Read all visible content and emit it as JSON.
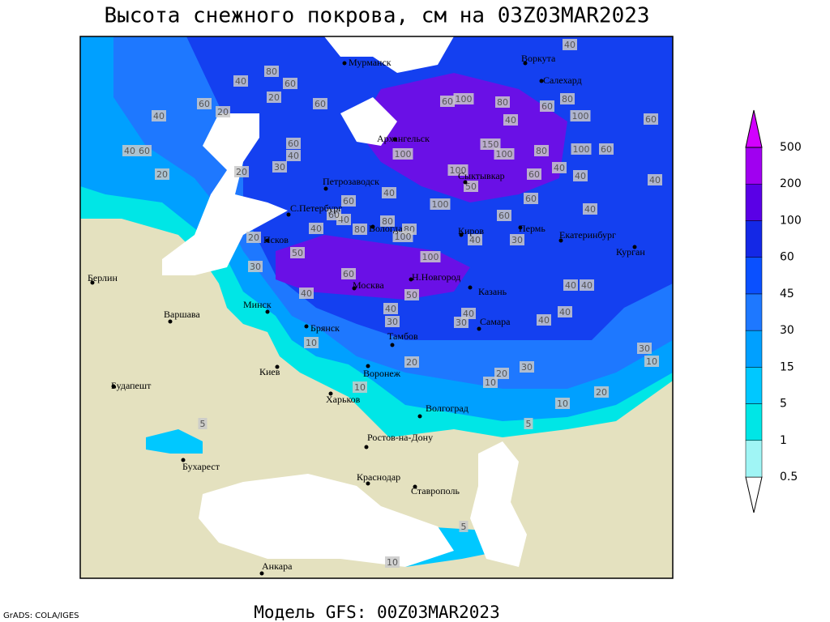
{
  "title": "Высота снежного покрова, см на 03Z03MAR2023",
  "footer": "Модель GFS: 00Z03MAR2023",
  "credit": "GrADS: COLA/IGES",
  "legend": {
    "levels": [
      0.5,
      1,
      5,
      15,
      30,
      45,
      60,
      100,
      200,
      500
    ],
    "colors": [
      "#ffffff",
      "#a0f5f5",
      "#00e6e6",
      "#00c8ff",
      "#00a0ff",
      "#1e78ff",
      "#0a50ff",
      "#1428e6",
      "#5a00e6",
      "#a000f0",
      "#d200ff"
    ]
  },
  "cities": [
    "Мурманск",
    "Воркута",
    "Салехард",
    "Архангельск",
    "Петрозаводск",
    "Сыктывкар",
    "С.Петербург",
    "Вологда",
    "Киров",
    "Пермь",
    "Екатеринбург",
    "Курган",
    "Псков",
    "Н.Новгород",
    "Москва",
    "Казань",
    "Берлин",
    "Минск",
    "Варшава",
    "Брянск",
    "Тамбов",
    "Самара",
    "Киев",
    "Воронеж",
    "Будапешт",
    "Харьков",
    "Волгоград",
    "Ростов-на-Дону",
    "Бухарест",
    "Краснодар",
    "Ставрополь",
    "Анкара"
  ],
  "map_labels": [
    40,
    80,
    60,
    60,
    20,
    40,
    20,
    60,
    40,
    60,
    20,
    20,
    30,
    60,
    40,
    60,
    100,
    80,
    40,
    60,
    80,
    100,
    60,
    40,
    150,
    100,
    100,
    80,
    100,
    60,
    100,
    50,
    60,
    40,
    40,
    40,
    60,
    40,
    100,
    60,
    40,
    60,
    80,
    80,
    80,
    40,
    100,
    40,
    60,
    30,
    40,
    20,
    50,
    100,
    30,
    40,
    60,
    50,
    40,
    40,
    40,
    30,
    40,
    30,
    40,
    40,
    10,
    20,
    30,
    20,
    10,
    10,
    20,
    10,
    30,
    10,
    5,
    5,
    10,
    5
  ]
}
